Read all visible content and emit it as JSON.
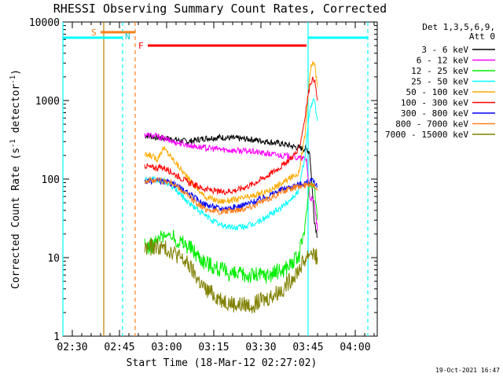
{
  "chart_data": {
    "type": "line",
    "title": "RHESSI Observing Summary Count Rates, Corrected",
    "xlabel": "Start Time (18-Mar-12 02:27:02)",
    "ylabel": "Corrected Count Rate (s",
    "ylabel_sup": "-1",
    "ylabel_tail": " detector",
    "ylabel_sup2": "-1",
    "ylabel_end": ")",
    "y_scale": "log",
    "ylim": [
      1,
      10000
    ],
    "xlim_minutes": [
      0,
      100
    ],
    "x_tick_labels": [
      "02:30",
      "02:45",
      "03:00",
      "03:15",
      "03:30",
      "03:45",
      "04:00"
    ],
    "x_tick_minutes": [
      3,
      18,
      33,
      48,
      63,
      78,
      93
    ],
    "y_tick_labels": [
      "1",
      "10",
      "100",
      "1000",
      "10000"
    ],
    "y_tick_values": [
      1,
      10,
      100,
      1000,
      10000
    ],
    "legend_header": [
      "Det 1,3,5,6,9,",
      "Att 0"
    ],
    "legend_position": "right",
    "timestamp": "19-Oct-2021 16:47",
    "series": [
      {
        "name": "3 - 6 keV",
        "color": "#000000",
        "x": [
          26,
          30,
          35,
          40,
          45,
          50,
          55,
          60,
          65,
          70,
          75,
          77.5,
          78.5,
          80,
          81
        ],
        "y": [
          360,
          340,
          320,
          300,
          330,
          340,
          330,
          320,
          300,
          280,
          250,
          240,
          220,
          30,
          18
        ]
      },
      {
        "name": "6 - 12 keV",
        "color": "#ff00ff",
        "x": [
          26,
          30,
          35,
          40,
          45,
          50,
          55,
          60,
          65,
          70,
          75,
          77.5,
          78.5,
          80,
          81
        ],
        "y": [
          370,
          350,
          300,
          270,
          250,
          240,
          230,
          225,
          210,
          200,
          185,
          180,
          60,
          50,
          22
        ]
      },
      {
        "name": "12 - 25 keV",
        "color": "#00ee00",
        "x": [
          26,
          28,
          30,
          32,
          35,
          40,
          45,
          50,
          55,
          60,
          65,
          70,
          75,
          77,
          78.5,
          80,
          81
        ],
        "y": [
          14,
          14,
          16,
          20,
          18,
          14,
          9,
          7,
          6,
          6,
          6,
          7,
          10,
          25,
          90,
          80,
          30
        ]
      },
      {
        "name": "25 - 50 keV",
        "color": "#00ffff",
        "x": [
          26,
          28,
          30,
          32,
          35,
          40,
          45,
          50,
          55,
          60,
          65,
          70,
          75,
          77,
          78,
          79,
          80,
          81
        ],
        "y": [
          100,
          100,
          95,
          95,
          80,
          50,
          35,
          26,
          24,
          26,
          33,
          45,
          70,
          200,
          500,
          900,
          1000,
          550
        ]
      },
      {
        "name": "50 - 100 keV",
        "color": "#ffaa00",
        "x": [
          26,
          28,
          30,
          32,
          35,
          40,
          45,
          50,
          55,
          60,
          65,
          70,
          75,
          77,
          78,
          79,
          80,
          81
        ],
        "y": [
          200,
          200,
          180,
          250,
          180,
          100,
          60,
          52,
          55,
          60,
          70,
          90,
          120,
          350,
          1200,
          2800,
          3100,
          1500
        ]
      },
      {
        "name": "100 - 300 keV",
        "color": "#ff0000",
        "x": [
          26,
          28,
          30,
          32,
          35,
          40,
          45,
          50,
          55,
          60,
          65,
          70,
          75,
          77,
          78,
          79,
          80,
          81
        ],
        "y": [
          150,
          140,
          140,
          140,
          120,
          90,
          75,
          68,
          72,
          85,
          110,
          150,
          230,
          600,
          1200,
          1800,
          1900,
          1000
        ]
      },
      {
        "name": "300 - 800 keV",
        "color": "#0000ff",
        "x": [
          26,
          30,
          35,
          40,
          45,
          50,
          55,
          60,
          65,
          70,
          75,
          78,
          79,
          80,
          81
        ],
        "y": [
          92,
          95,
          88,
          65,
          48,
          42,
          44,
          50,
          60,
          75,
          85,
          92,
          95,
          90,
          80
        ]
      },
      {
        "name": "800 - 7000 keV",
        "color": "#ff7f1a",
        "x": [
          26,
          30,
          35,
          40,
          45,
          50,
          55,
          60,
          65,
          70,
          75,
          78,
          79,
          80,
          81
        ],
        "y": [
          95,
          98,
          88,
          60,
          42,
          38,
          40,
          45,
          55,
          70,
          80,
          85,
          88,
          85,
          75
        ]
      },
      {
        "name": "7000 - 15000 keV",
        "color": "#808000",
        "x": [
          26,
          30,
          35,
          40,
          45,
          50,
          55,
          60,
          65,
          70,
          75,
          78,
          79,
          80,
          81
        ],
        "y": [
          13,
          14,
          12,
          8,
          4,
          3,
          2.5,
          2.5,
          3,
          4,
          7,
          11,
          12,
          11,
          10
        ]
      }
    ],
    "state_bars": [
      {
        "label": "S",
        "color": "#ff7f1a",
        "x0": 12,
        "x1": 23
      },
      {
        "label": "N",
        "color": "#00c8c8",
        "x0": 19,
        "x1": 19.5
      },
      {
        "label": "F",
        "color": "#ff0000",
        "x0": 27,
        "x1": 77.5
      }
    ],
    "orbit_bars": [
      {
        "color": "#00ffff",
        "x0": 0,
        "x1": 19
      },
      {
        "color": "#00ffff",
        "x0": 78,
        "x1": 97
      }
    ],
    "vlines": [
      {
        "x": 0,
        "color": "#00ffff",
        "style": "solid"
      },
      {
        "x": 13,
        "color": "#c08000",
        "style": "solid"
      },
      {
        "x": 19,
        "color": "#00ffff",
        "style": "dashed"
      },
      {
        "x": 23,
        "color": "#ff7f1a",
        "style": "dashed"
      },
      {
        "x": 78,
        "color": "#00ffff",
        "style": "solid"
      },
      {
        "x": 97,
        "color": "#00ffff",
        "style": "dashed"
      }
    ]
  }
}
